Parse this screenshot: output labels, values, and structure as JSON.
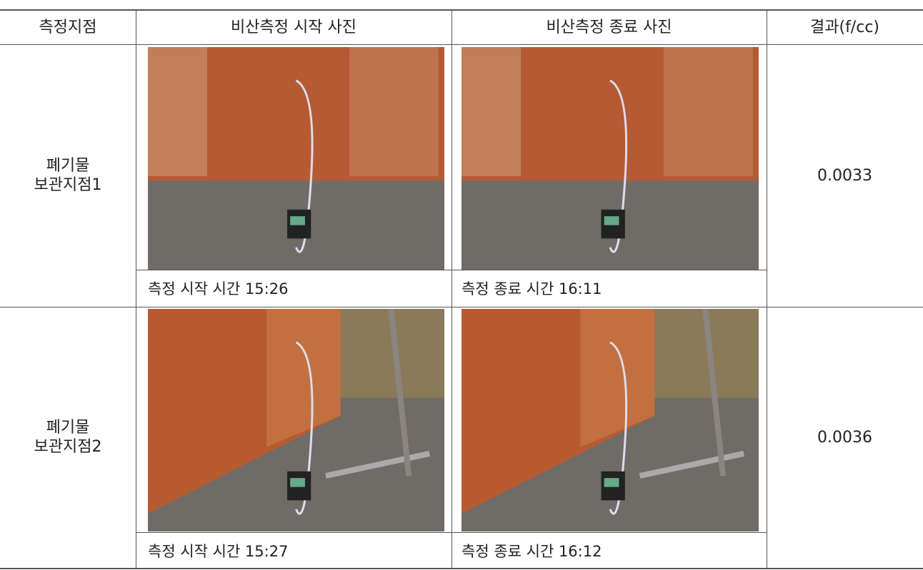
{
  "table": {
    "header": [
      "측정지점",
      "비산측정 시작 사진",
      "비산측정 종료 사진",
      "결과(f/cc)"
    ],
    "rows": [
      {
        "location": [
          "폐기물",
          "보관지점1"
        ],
        "start_caption": "측정 시작 시간 15:26",
        "end_caption": "측정 종료 시간 16:11",
        "result": "0.0033"
      },
      {
        "location": [
          "폐기물",
          "보관지점2"
        ],
        "start_caption": "측정 시작 시간 15:27",
        "end_caption": "측정 종료 시간 16:12",
        "result": "0.0036"
      }
    ]
  }
}
